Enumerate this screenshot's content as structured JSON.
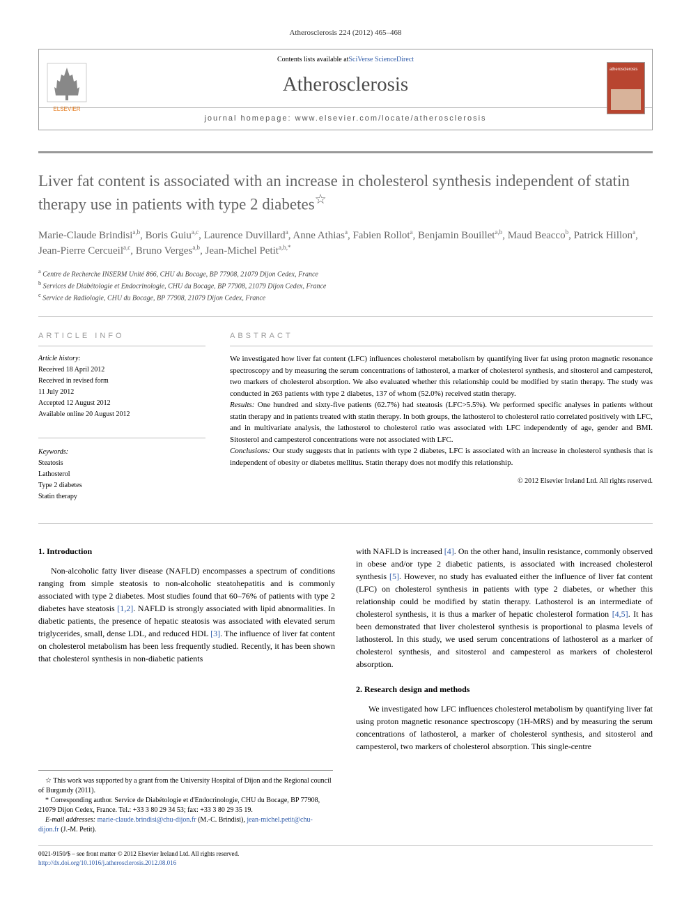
{
  "pageRef": "Atherosclerosis 224 (2012) 465–468",
  "header": {
    "contentsText": "Contents lists available at ",
    "contentsLink": "SciVerse ScienceDirect",
    "journalName": "Atherosclerosis",
    "homepageLabel": "journal homepage: ",
    "homepageUrl": "www.elsevier.com/locate/atherosclerosis",
    "publisherName": "ELSEVIER"
  },
  "title": "Liver fat content is associated with an increase in cholesterol synthesis independent of statin therapy use in patients with type 2 diabetes",
  "titleNote": "☆",
  "authors": [
    {
      "name": "Marie-Claude Brindisi",
      "aff": "a,b"
    },
    {
      "name": "Boris Guiu",
      "aff": "a,c"
    },
    {
      "name": "Laurence Duvillard",
      "aff": "a"
    },
    {
      "name": "Anne Athias",
      "aff": "a"
    },
    {
      "name": "Fabien Rollot",
      "aff": "a"
    },
    {
      "name": "Benjamin Bouillet",
      "aff": "a,b"
    },
    {
      "name": "Maud Beacco",
      "aff": "b"
    },
    {
      "name": "Patrick Hillon",
      "aff": "a"
    },
    {
      "name": "Jean-Pierre Cercueil",
      "aff": "a,c"
    },
    {
      "name": "Bruno Verges",
      "aff": "a,b"
    },
    {
      "name": "Jean-Michel Petit",
      "aff": "a,b,*"
    }
  ],
  "affiliations": [
    {
      "sup": "a",
      "text": "Centre de Recherche INSERM Unité 866, CHU du Bocage, BP 77908, 21079 Dijon Cedex, France"
    },
    {
      "sup": "b",
      "text": "Services de Diabétologie et Endocrinologie, CHU du Bocage, BP 77908, 21079 Dijon Cedex, France"
    },
    {
      "sup": "c",
      "text": "Service de Radiologie, CHU du Bocage, BP 77908, 21079 Dijon Cedex, France"
    }
  ],
  "articleInfo": {
    "heading": "ARTICLE INFO",
    "historyLabel": "Article history:",
    "history": [
      "Received 18 April 2012",
      "Received in revised form",
      "11 July 2012",
      "Accepted 12 August 2012",
      "Available online 20 August 2012"
    ],
    "keywordsLabel": "Keywords:",
    "keywords": [
      "Steatosis",
      "Lathosterol",
      "Type 2 diabetes",
      "Statin therapy"
    ]
  },
  "abstract": {
    "heading": "ABSTRACT",
    "p1": "We investigated how liver fat content (LFC) influences cholesterol metabolism by quantifying liver fat using proton magnetic resonance spectroscopy and by measuring the serum concentrations of lathosterol, a marker of cholesterol synthesis, and sitosterol and campesterol, two markers of cholesterol absorption. We also evaluated whether this relationship could be modified by statin therapy. The study was conducted in 263 patients with type 2 diabetes, 137 of whom (52.0%) received statin therapy.",
    "p2label": "Results:",
    "p2": " One hundred and sixty-five patients (62.7%) had steatosis (LFC>5.5%). We performed specific analyses in patients without statin therapy and in patients treated with statin therapy. In both groups, the lathosterol to cholesterol ratio correlated positively with LFC, and in multivariate analysis, the lathosterol to cholesterol ratio was associated with LFC independently of age, gender and BMI. Sitosterol and campesterol concentrations were not associated with LFC.",
    "p3label": "Conclusions:",
    "p3": " Our study suggests that in patients with type 2 diabetes, LFC is associated with an increase in cholesterol synthesis that is independent of obesity or diabetes mellitus. Statin therapy does not modify this relationship.",
    "copyright": "© 2012 Elsevier Ireland Ltd. All rights reserved."
  },
  "body": {
    "section1": {
      "heading": "1. Introduction",
      "col1": "Non-alcoholic fatty liver disease (NAFLD) encompasses a spectrum of conditions ranging from simple steatosis to non-alcoholic steatohepatitis and is commonly associated with type 2 diabetes. Most studies found that 60–76% of patients with type 2 diabetes have steatosis [1,2]. NAFLD is strongly associated with lipid abnormalities. In diabetic patients, the presence of hepatic steatosis was associated with elevated serum triglycerides, small, dense LDL, and reduced HDL [3]. The influence of liver fat content on cholesterol metabolism has been less frequently studied. Recently, it has been shown that cholesterol synthesis in non-diabetic patients",
      "col2": "with NAFLD is increased [4]. On the other hand, insulin resistance, commonly observed in obese and/or type 2 diabetic patients, is associated with increased cholesterol synthesis [5]. However, no study has evaluated either the influence of liver fat content (LFC) on cholesterol synthesis in patients with type 2 diabetes, or whether this relationship could be modified by statin therapy. Lathosterol is an intermediate of cholesterol synthesis, it is thus a marker of hepatic cholesterol formation [4,5]. It has been demonstrated that liver cholesterol synthesis is proportional to plasma levels of lathosterol. In this study, we used serum concentrations of lathosterol as a marker of cholesterol synthesis, and sitosterol and campesterol as markers of cholesterol absorption."
    },
    "section2": {
      "heading": "2. Research design and methods",
      "text": "We investigated how LFC influences cholesterol metabolism by quantifying liver fat using proton magnetic resonance spectroscopy (1H-MRS) and by measuring the serum concentrations of lathosterol, a marker of cholesterol synthesis, and sitosterol and campesterol, two markers of cholesterol absorption. This single-centre"
    }
  },
  "footnotes": {
    "funding": "☆ This work was supported by a grant from the University Hospital of Dijon and the Regional council of Burgundy (2011).",
    "corresponding": "* Corresponding author. Service de Diabétologie et d'Endocrinologie, CHU du Bocage, BP 77908, 21079 Dijon Cedex, France. Tel.: +33 3 80 29 34 53; fax: +33 3 80 29 35 19.",
    "emailLabel": "E-mail addresses:",
    "email1": "marie-claude.brindisi@chu-dijon.fr",
    "email1who": " (M.-C. Brindisi), ",
    "email2": "jean-michel.petit@chu-dijon.fr",
    "email2who": " (J.-M. Petit)."
  },
  "bottomMeta": {
    "issn": "0021-9150/$ – see front matter © 2012 Elsevier Ireland Ltd. All rights reserved.",
    "doi": "http://dx.doi.org/10.1016/j.atherosclerosis.2012.08.016"
  }
}
